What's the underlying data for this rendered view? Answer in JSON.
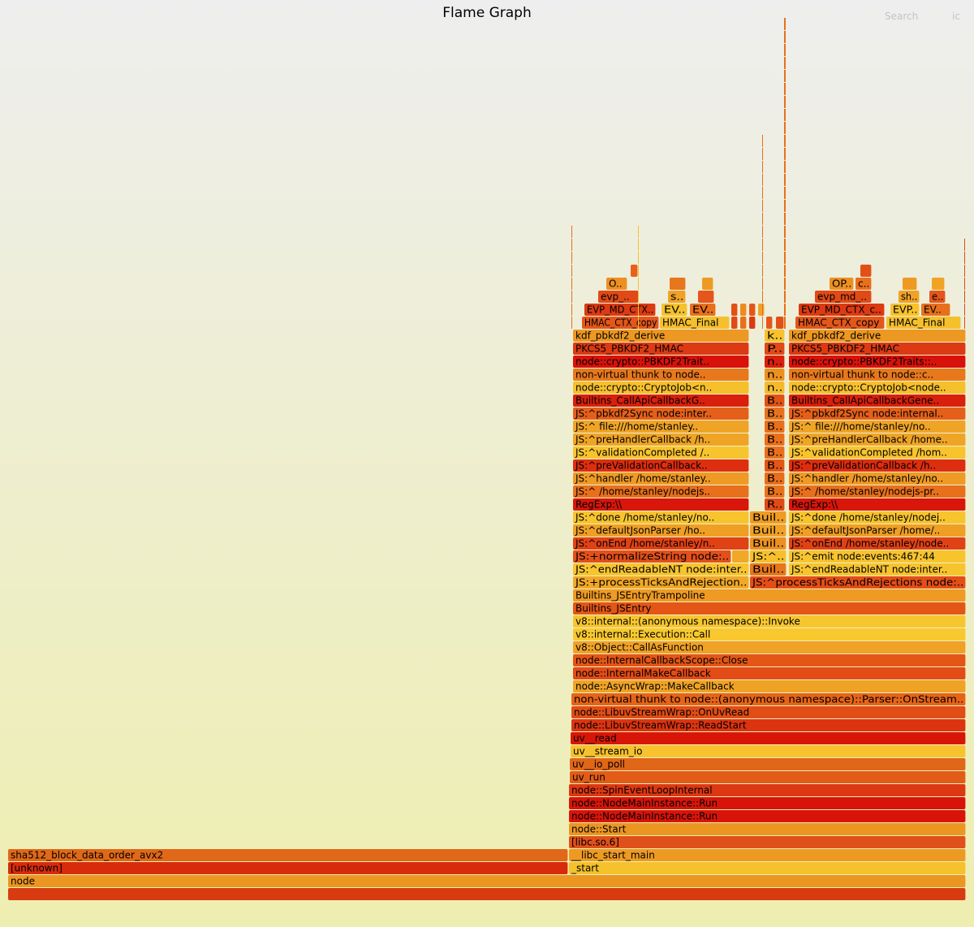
{
  "header": {
    "title": "Flame Graph",
    "search_label": "Search",
    "ic_label": "ic"
  },
  "chart_data": {
    "type": "flamegraph",
    "title": "Flame Graph",
    "total_samples": 1180,
    "frames": [
      {
        "name": "",
        "start": 0,
        "width": 1180,
        "depth": 0,
        "color": "#d83b10"
      },
      {
        "name": "node",
        "start": 0,
        "width": 1180,
        "depth": 1,
        "color": "#ec9622"
      },
      {
        "name": "[unknown]",
        "start": 0,
        "width": 690,
        "depth": 2,
        "color": "#d82b0c"
      },
      {
        "name": "sha512_block_data_order_avx2",
        "start": 0,
        "width": 690,
        "depth": 3,
        "color": "#e06818"
      },
      {
        "name": "_start",
        "start": 691,
        "width": 489,
        "depth": 2,
        "color": "#f5c12c"
      },
      {
        "name": "__libc_start_main",
        "start": 691,
        "width": 489,
        "depth": 3,
        "color": "#ee9a22"
      },
      {
        "name": "[libc.so.6]",
        "start": 691,
        "width": 489,
        "depth": 4,
        "color": "#e0501a"
      },
      {
        "name": "node::Start",
        "start": 691,
        "width": 489,
        "depth": 5,
        "color": "#ec9622"
      },
      {
        "name": "node::NodeMainInstance::Run",
        "start": 691,
        "width": 489,
        "depth": 6,
        "color": "#d8140a"
      },
      {
        "name": "node::NodeMainInstance::Run",
        "start": 691,
        "width": 489,
        "depth": 7,
        "color": "#d8140a"
      },
      {
        "name": "node::SpinEventLoopInternal",
        "start": 691,
        "width": 489,
        "depth": 8,
        "color": "#dc3812"
      },
      {
        "name": "uv_run",
        "start": 692,
        "width": 488,
        "depth": 9,
        "color": "#e25c18"
      },
      {
        "name": "uv__io_poll",
        "start": 692,
        "width": 488,
        "depth": 10,
        "color": "#e06618"
      },
      {
        "name": "uv__stream_io",
        "start": 693,
        "width": 487,
        "depth": 11,
        "color": "#f7c22e"
      },
      {
        "name": "uv__read",
        "start": 693,
        "width": 487,
        "depth": 12,
        "color": "#d81608"
      },
      {
        "name": "node::LibuvStreamWrap::ReadStart",
        "start": 694,
        "width": 486,
        "depth": 13,
        "color": "#dc3410"
      },
      {
        "name": "node::LibuvStreamWrap::OnUvRead",
        "start": 694,
        "width": 486,
        "depth": 14,
        "color": "#e04e16"
      },
      {
        "name": "non-virtual thunk to node::(anonymous namespace)::Parser::OnStream..",
        "start": 694,
        "width": 486,
        "depth": 15,
        "color": "#e66418"
      },
      {
        "name": "node::AsyncWrap::MakeCallback",
        "start": 696,
        "width": 484,
        "depth": 16,
        "color": "#efa326"
      },
      {
        "name": "node::InternalMakeCallback",
        "start": 696,
        "width": 484,
        "depth": 17,
        "color": "#e34c16"
      },
      {
        "name": "node::InternalCallbackScope::Close",
        "start": 696,
        "width": 484,
        "depth": 18,
        "color": "#e35616"
      },
      {
        "name": "v8::Object::CallAsFunction",
        "start": 696,
        "width": 484,
        "depth": 19,
        "color": "#f0a226"
      },
      {
        "name": "v8::internal::Execution::Call",
        "start": 696,
        "width": 484,
        "depth": 20,
        "color": "#f8c82e"
      },
      {
        "name": "v8::internal::(anonymous namespace)::Invoke",
        "start": 696,
        "width": 484,
        "depth": 21,
        "color": "#f7c62e"
      },
      {
        "name": "Builtins_JSEntry",
        "start": 696,
        "width": 484,
        "depth": 22,
        "color": "#e45616"
      },
      {
        "name": "Builtins_JSEntryTrampoline",
        "start": 696,
        "width": 484,
        "depth": 23,
        "color": "#ef9a22"
      },
      {
        "name": "JS:+processTicksAndRejection..",
        "start": 696,
        "width": 217,
        "depth": 24,
        "color": "#f0a826"
      },
      {
        "name": "JS:^processTicksAndRejections node:..",
        "start": 914,
        "width": 266,
        "depth": 24,
        "color": "#e44e16"
      },
      {
        "name": "JS:^endReadableNT node:inter..",
        "start": 696,
        "width": 217,
        "depth": 25,
        "color": "#f8c42e"
      },
      {
        "name": "Buil..",
        "start": 914,
        "width": 45,
        "depth": 25,
        "color": "#e8761c"
      },
      {
        "name": "JS:^endReadableNT node:inter..",
        "start": 962,
        "width": 218,
        "depth": 25,
        "color": "#f8c42e"
      },
      {
        "name": "JS:+normalizeString node:..",
        "start": 696,
        "width": 195,
        "depth": 26,
        "color": "#e3501a"
      },
      {
        "name": "",
        "start": 892,
        "width": 21,
        "depth": 26,
        "color": "#f0a826"
      },
      {
        "name": "JS:^..",
        "start": 914,
        "width": 45,
        "depth": 26,
        "color": "#f5c02c"
      },
      {
        "name": "JS:^emit node:events:467:44",
        "start": 962,
        "width": 218,
        "depth": 26,
        "color": "#f7c42e"
      },
      {
        "name": "JS:^onEnd /home/stanley/n..",
        "start": 696,
        "width": 217,
        "depth": 27,
        "color": "#e04216"
      },
      {
        "name": "Buil..",
        "start": 914,
        "width": 45,
        "depth": 27,
        "color": "#ec9022"
      },
      {
        "name": "JS:^onEnd /home/stanley/node..",
        "start": 962,
        "width": 218,
        "depth": 27,
        "color": "#e04216"
      },
      {
        "name": "JS:^defaultJsonParser /ho..",
        "start": 696,
        "width": 217,
        "depth": 28,
        "color": "#ef9f24"
      },
      {
        "name": "Buil..",
        "start": 914,
        "width": 45,
        "depth": 28,
        "color": "#f0a226"
      },
      {
        "name": "JS:^defaultJsonParser /home/..",
        "start": 962,
        "width": 218,
        "depth": 28,
        "color": "#ef9f24"
      },
      {
        "name": "JS:^done /home/stanley/no..",
        "start": 696,
        "width": 217,
        "depth": 29,
        "color": "#f7c42e"
      },
      {
        "name": "Buil..",
        "start": 914,
        "width": 45,
        "depth": 29,
        "color": "#ee9c22"
      },
      {
        "name": "JS:^done /home/stanley/nodej..",
        "start": 962,
        "width": 218,
        "depth": 29,
        "color": "#f7c42e"
      },
      {
        "name": "RegExp:\\\\",
        "start": 696,
        "width": 217,
        "depth": 30,
        "color": "#d8160a"
      },
      {
        "name": "R..",
        "start": 932,
        "width": 25,
        "depth": 30,
        "color": "#e04a16"
      },
      {
        "name": "RegExp:\\\\",
        "start": 962,
        "width": 218,
        "depth": 30,
        "color": "#d8160a"
      },
      {
        "name": "JS:^ /home/stanley/nodejs..",
        "start": 696,
        "width": 217,
        "depth": 31,
        "color": "#e8701c"
      },
      {
        "name": "B..",
        "start": 932,
        "width": 25,
        "depth": 31,
        "color": "#e8721c"
      },
      {
        "name": "JS:^ /home/stanley/nodejs-pr..",
        "start": 962,
        "width": 218,
        "depth": 31,
        "color": "#e8701c"
      },
      {
        "name": "JS:^handler /home/stanley..",
        "start": 696,
        "width": 217,
        "depth": 32,
        "color": "#ef9a24"
      },
      {
        "name": "B..",
        "start": 932,
        "width": 25,
        "depth": 32,
        "color": "#e86e1c"
      },
      {
        "name": "JS:^handler /home/stanley/no..",
        "start": 962,
        "width": 218,
        "depth": 32,
        "color": "#ef9a24"
      },
      {
        "name": "JS:^preValidationCallback..",
        "start": 696,
        "width": 217,
        "depth": 33,
        "color": "#dd2e10"
      },
      {
        "name": "B..",
        "start": 932,
        "width": 25,
        "depth": 33,
        "color": "#e25616"
      },
      {
        "name": "JS:^preValidationCallback /h..",
        "start": 962,
        "width": 218,
        "depth": 33,
        "color": "#dd2e10"
      },
      {
        "name": "JS:^validationCompleted /..",
        "start": 696,
        "width": 217,
        "depth": 34,
        "color": "#f8c42e"
      },
      {
        "name": "B..",
        "start": 932,
        "width": 25,
        "depth": 34,
        "color": "#e8701c"
      },
      {
        "name": "JS:^validationCompleted /hom..",
        "start": 962,
        "width": 218,
        "depth": 34,
        "color": "#f8c42e"
      },
      {
        "name": "JS:^preHandlerCallback /h..",
        "start": 696,
        "width": 217,
        "depth": 35,
        "color": "#efa426"
      },
      {
        "name": "B..",
        "start": 932,
        "width": 25,
        "depth": 35,
        "color": "#e8701c"
      },
      {
        "name": "JS:^preHandlerCallback /home..",
        "start": 962,
        "width": 218,
        "depth": 35,
        "color": "#efa426"
      },
      {
        "name": "JS:^ file:///home/stanley..",
        "start": 696,
        "width": 217,
        "depth": 36,
        "color": "#f0a426"
      },
      {
        "name": "B..",
        "start": 932,
        "width": 25,
        "depth": 36,
        "color": "#e8701c"
      },
      {
        "name": "JS:^ file:///home/stanley/no..",
        "start": 962,
        "width": 218,
        "depth": 36,
        "color": "#f0a426"
      },
      {
        "name": "JS:^pbkdf2Sync node:inter..",
        "start": 696,
        "width": 217,
        "depth": 37,
        "color": "#e4601a"
      },
      {
        "name": "B..",
        "start": 932,
        "width": 25,
        "depth": 37,
        "color": "#e8721c"
      },
      {
        "name": "JS:^pbkdf2Sync node:internal..",
        "start": 962,
        "width": 218,
        "depth": 37,
        "color": "#e4601a"
      },
      {
        "name": "Builtins_CallApiCallbackG..",
        "start": 696,
        "width": 217,
        "depth": 38,
        "color": "#d8200c"
      },
      {
        "name": "B..",
        "start": 932,
        "width": 25,
        "depth": 38,
        "color": "#e05216"
      },
      {
        "name": "Builtins_CallApiCallbackGene..",
        "start": 962,
        "width": 218,
        "depth": 38,
        "color": "#d8200c"
      },
      {
        "name": "node::crypto::CryptoJob<n..",
        "start": 696,
        "width": 217,
        "depth": 39,
        "color": "#f6c02c"
      },
      {
        "name": "n..",
        "start": 932,
        "width": 25,
        "depth": 39,
        "color": "#f4ba2a"
      },
      {
        "name": "node::crypto::CryptoJob<node..",
        "start": 962,
        "width": 218,
        "depth": 39,
        "color": "#f6c02c"
      },
      {
        "name": "non-virtual thunk to node..",
        "start": 696,
        "width": 217,
        "depth": 40,
        "color": "#e8781c"
      },
      {
        "name": "n..",
        "start": 932,
        "width": 25,
        "depth": 40,
        "color": "#ec9020"
      },
      {
        "name": "non-virtual thunk to node::c..",
        "start": 962,
        "width": 218,
        "depth": 40,
        "color": "#e8781c"
      },
      {
        "name": "node::crypto::PBKDF2Trait..",
        "start": 696,
        "width": 217,
        "depth": 41,
        "color": "#d8120a"
      },
      {
        "name": "n..",
        "start": 932,
        "width": 25,
        "depth": 41,
        "color": "#d8200c"
      },
      {
        "name": "node::crypto::PBKDF2Traits::..",
        "start": 962,
        "width": 218,
        "depth": 41,
        "color": "#d8120a"
      },
      {
        "name": "PKCS5_PBKDF2_HMAC",
        "start": 696,
        "width": 217,
        "depth": 42,
        "color": "#dc3a12"
      },
      {
        "name": "P..",
        "start": 932,
        "width": 25,
        "depth": 42,
        "color": "#e04a16"
      },
      {
        "name": "PKCS5_PBKDF2_HMAC",
        "start": 962,
        "width": 218,
        "depth": 42,
        "color": "#dc3a12"
      },
      {
        "name": "kdf_pbkdf2_derive",
        "start": 696,
        "width": 217,
        "depth": 43,
        "color": "#ed9822"
      },
      {
        "name": "k..",
        "start": 932,
        "width": 25,
        "depth": 43,
        "color": "#f7c22e"
      },
      {
        "name": "kdf_pbkdf2_derive",
        "start": 962,
        "width": 218,
        "depth": 43,
        "color": "#ed9822"
      },
      {
        "name": "HMAC_CTX_copy",
        "start": 707,
        "width": 95,
        "depth": 44,
        "color": "#e4561a"
      },
      {
        "name": "HMAC_Final",
        "start": 803,
        "width": 86,
        "depth": 44,
        "color": "#f5c02c"
      },
      {
        "name": "",
        "start": 891,
        "width": 8,
        "depth": 44,
        "color": "#e04a16"
      },
      {
        "name": "",
        "start": 902,
        "width": 8,
        "depth": 44,
        "color": "#e8701c"
      },
      {
        "name": "",
        "start": 913,
        "width": 8,
        "depth": 44,
        "color": "#dc3a12"
      },
      {
        "name": "",
        "start": 934,
        "width": 8,
        "depth": 44,
        "color": "#e4561a"
      },
      {
        "name": "",
        "start": 946,
        "width": 10,
        "depth": 44,
        "color": "#e25016"
      },
      {
        "name": "HMAC_CTX_copy",
        "start": 970,
        "width": 110,
        "depth": 44,
        "color": "#e4561a"
      },
      {
        "name": "HMAC_Final",
        "start": 1082,
        "width": 92,
        "depth": 44,
        "color": "#f5c02c"
      },
      {
        "name": "EVP_MD_CTX..",
        "start": 710,
        "width": 88,
        "depth": 45,
        "color": "#dc3a12"
      },
      {
        "name": "EV..",
        "start": 805,
        "width": 32,
        "depth": 45,
        "color": "#f6c22c"
      },
      {
        "name": "EV..",
        "start": 840,
        "width": 32,
        "depth": 45,
        "color": "#e8701c"
      },
      {
        "name": "",
        "start": 891,
        "width": 8,
        "depth": 45,
        "color": "#e25016"
      },
      {
        "name": "",
        "start": 902,
        "width": 8,
        "depth": 45,
        "color": "#ed8a20"
      },
      {
        "name": "",
        "start": 913,
        "width": 8,
        "depth": 45,
        "color": "#e45616"
      },
      {
        "name": "",
        "start": 924,
        "width": 8,
        "depth": 45,
        "color": "#f0a226"
      },
      {
        "name": "EVP_MD_CTX_c..",
        "start": 974,
        "width": 106,
        "depth": 45,
        "color": "#dc3a12"
      },
      {
        "name": "EVP..",
        "start": 1087,
        "width": 36,
        "depth": 45,
        "color": "#f6c22c"
      },
      {
        "name": "EV..",
        "start": 1125,
        "width": 36,
        "depth": 45,
        "color": "#e8701c"
      },
      {
        "name": "evp_..",
        "start": 727,
        "width": 50,
        "depth": 46,
        "color": "#e04a16"
      },
      {
        "name": "s..",
        "start": 813,
        "width": 22,
        "depth": 46,
        "color": "#f0a226"
      },
      {
        "name": "",
        "start": 850,
        "width": 20,
        "depth": 46,
        "color": "#e4561a"
      },
      {
        "name": "evp_md_..",
        "start": 994,
        "width": 70,
        "depth": 46,
        "color": "#e04a16"
      },
      {
        "name": "sh..",
        "start": 1097,
        "width": 26,
        "depth": 46,
        "color": "#f0a226"
      },
      {
        "name": "e..",
        "start": 1135,
        "width": 20,
        "depth": 46,
        "color": "#e4561a"
      },
      {
        "name": "O..",
        "start": 737,
        "width": 26,
        "depth": 47,
        "color": "#ed9022"
      },
      {
        "name": "",
        "start": 815,
        "width": 20,
        "depth": 47,
        "color": "#e8761c"
      },
      {
        "name": "",
        "start": 855,
        "width": 14,
        "depth": 47,
        "color": "#ee9a22"
      },
      {
        "name": "OP..",
        "start": 1012,
        "width": 30,
        "depth": 47,
        "color": "#ed9022"
      },
      {
        "name": "c..",
        "start": 1044,
        "width": 20,
        "depth": 47,
        "color": "#e8701c"
      },
      {
        "name": "",
        "start": 1102,
        "width": 18,
        "depth": 47,
        "color": "#ee9a22"
      },
      {
        "name": "",
        "start": 1138,
        "width": 16,
        "depth": 47,
        "color": "#f0a426"
      },
      {
        "name": "",
        "start": 767,
        "width": 9,
        "depth": 48,
        "color": "#e8601a"
      },
      {
        "name": "",
        "start": 1050,
        "width": 14,
        "depth": 48,
        "color": "#e25016"
      }
    ],
    "spikes": [
      {
        "start": 694,
        "width": 1,
        "depth_from": 44,
        "depth_to": 51,
        "color": "#e8701c"
      },
      {
        "start": 776,
        "width": 1,
        "depth_from": 44,
        "depth_to": 51,
        "color": "#f5c02c"
      },
      {
        "start": 929,
        "width": 1,
        "depth_from": 44,
        "depth_to": 58,
        "color": "#e8701c"
      },
      {
        "start": 956,
        "width": 2,
        "depth_from": 44,
        "depth_to": 67,
        "color": "#e8701c"
      },
      {
        "start": 1178,
        "width": 1,
        "depth_from": 44,
        "depth_to": 50,
        "color": "#e04a16"
      }
    ]
  }
}
